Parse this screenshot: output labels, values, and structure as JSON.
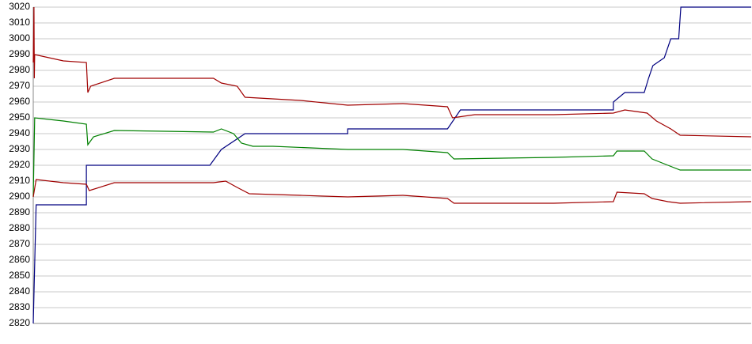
{
  "chart_data": {
    "type": "line",
    "grid": true,
    "ylim": [
      2820,
      3020
    ],
    "yticks": [
      2820,
      2830,
      2840,
      2850,
      2860,
      2870,
      2880,
      2890,
      2900,
      2910,
      2920,
      2930,
      2940,
      2950,
      2960,
      2970,
      2980,
      2990,
      3000,
      3010,
      3020
    ],
    "xlim": [
      0,
      100
    ],
    "series": [
      {
        "color": "#000080",
        "x": [
          0,
          0.4,
          7.4,
          7.4,
          24.6,
          26.2,
          29.5,
          43.8,
          43.8,
          57.7,
          59.5,
          80.8,
          80.8,
          82.4,
          85.1,
          85.7,
          86.3,
          87.9,
          88.8,
          89.9,
          90.2,
          100
        ],
        "values": [
          2820,
          2895,
          2895,
          2920,
          2920,
          2930,
          2940,
          2940,
          2943,
          2943,
          2955,
          2955,
          2960,
          2966,
          2966,
          2975,
          2983,
          2988,
          3000,
          3000,
          3020,
          3020
        ]
      },
      {
        "color": "#a00000",
        "x": [
          0,
          0.1,
          0.15,
          0.2,
          4.2,
          7.4,
          7.6,
          8.0,
          11.3,
          25.1,
          26.2,
          28.4,
          29.5,
          37.2,
          43.8,
          51.5,
          57.7,
          58.4,
          61.5,
          72.5,
          80.8,
          82.4,
          85.5,
          86.8,
          88.8,
          90.1,
          100
        ],
        "values": [
          2985,
          3020,
          2975,
          2990,
          2986,
          2985,
          2966,
          2970,
          2975,
          2975,
          2972,
          2970,
          2963,
          2961,
          2958,
          2959,
          2957,
          2950,
          2952,
          2952,
          2953,
          2955,
          2953,
          2948,
          2943,
          2939,
          2938
        ]
      },
      {
        "color": "#008000",
        "x": [
          0,
          0.2,
          4.2,
          7.4,
          7.6,
          8.4,
          11.3,
          25.1,
          26.2,
          27.9,
          29.0,
          30.6,
          33.4,
          43.8,
          51.5,
          57.7,
          58.6,
          72.5,
          80.8,
          81.3,
          85.1,
          86.2,
          88.4,
          90.1,
          100
        ],
        "values": [
          2900,
          2950,
          2948,
          2946,
          2933,
          2938,
          2942,
          2941,
          2943,
          2940,
          2934,
          2932,
          2932,
          2930,
          2930,
          2928,
          2924,
          2925,
          2926,
          2929,
          2929,
          2924,
          2920,
          2917,
          2917
        ]
      },
      {
        "color": "#a00000",
        "x": [
          0,
          0.4,
          4.2,
          7.4,
          7.8,
          11.3,
          25.1,
          26.8,
          28.4,
          30.1,
          37.2,
          43.8,
          51.5,
          57.7,
          58.6,
          72.5,
          80.8,
          81.3,
          85.1,
          86.2,
          88.4,
          90.1,
          100
        ],
        "values": [
          2900,
          2911,
          2909,
          2908,
          2904,
          2909,
          2909,
          2910,
          2906,
          2902,
          2901,
          2900,
          2901,
          2899,
          2896,
          2896,
          2897,
          2903,
          2902,
          2899,
          2897,
          2896,
          2897
        ]
      }
    ]
  }
}
